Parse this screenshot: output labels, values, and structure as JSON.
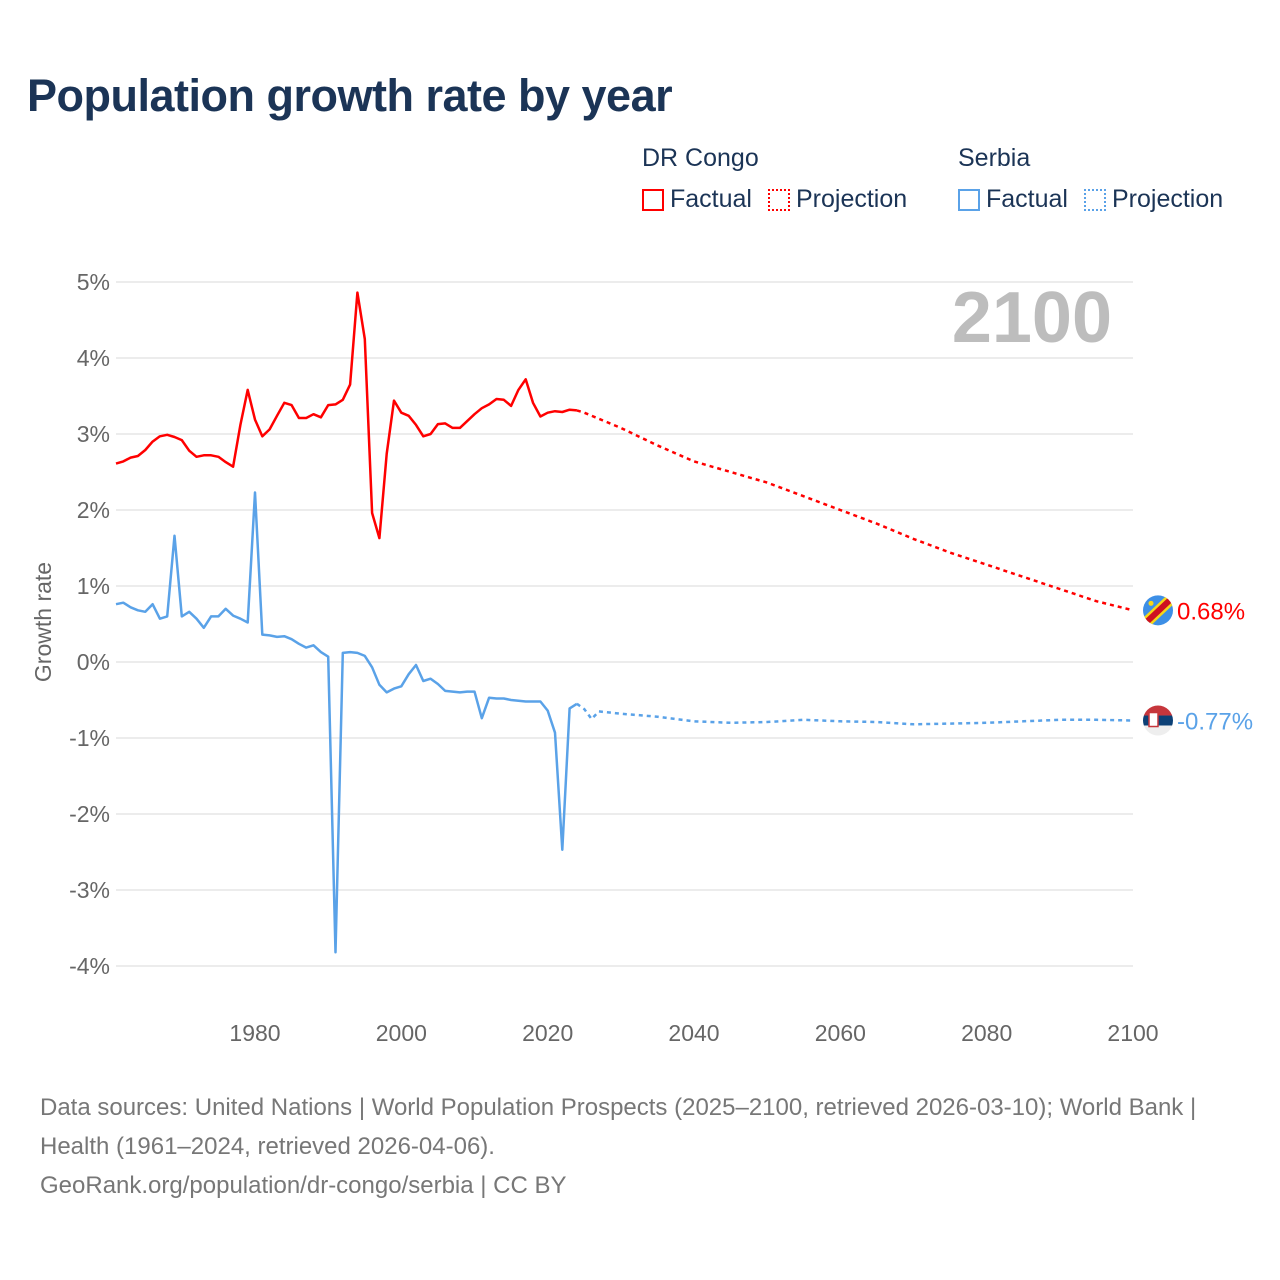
{
  "title": "Population growth rate by year",
  "legend": {
    "groups": [
      {
        "name": "DR Congo",
        "factual": "Factual",
        "projection": "Projection",
        "color": "#ff0000"
      },
      {
        "name": "Serbia",
        "factual": "Factual",
        "projection": "Projection",
        "color": "#5aa2e8"
      }
    ]
  },
  "year_label": "2100",
  "footer": {
    "sources": "Data sources: United Nations | World Population Prospects (2025–2100, retrieved 2026-03-10); World Bank | Health (1961–2024, retrieved 2026-04-06).",
    "credit": "GeoRank.org/population/dr-congo/serbia | CC BY"
  },
  "chart_data": {
    "type": "line",
    "title": "Population growth rate by year",
    "xlabel": "",
    "ylabel": "Growth rate",
    "xlim": [
      1961,
      2100
    ],
    "ylim": [
      -4.3,
      5.2
    ],
    "x_ticks": [
      1980,
      2000,
      2020,
      2040,
      2060,
      2080,
      2100
    ],
    "x_tick_labels": [
      "1980",
      "2000",
      "2020",
      "2040",
      "2060",
      "2080",
      "2100"
    ],
    "y_ticks": [
      5,
      4,
      3,
      2,
      1,
      0,
      -1,
      -2,
      -3,
      -4
    ],
    "y_tick_labels": [
      "5%",
      "4%",
      "3%",
      "2%",
      "1%",
      "0%",
      "-1%",
      "-2%",
      "-3%",
      "-4%"
    ],
    "grid": true,
    "legend_position": "top-right",
    "series": [
      {
        "name": "DR Congo",
        "color": "#ff0000",
        "end_label": "0.68%",
        "factual": {
          "x": [
            1961,
            1962,
            1963,
            1964,
            1965,
            1966,
            1967,
            1968,
            1969,
            1970,
            1971,
            1972,
            1973,
            1974,
            1975,
            1976,
            1977,
            1978,
            1979,
            1980,
            1981,
            1982,
            1983,
            1984,
            1985,
            1986,
            1987,
            1988,
            1989,
            1990,
            1991,
            1992,
            1993,
            1994,
            1995,
            1996,
            1997,
            1998,
            1999,
            2000,
            2001,
            2002,
            2003,
            2004,
            2005,
            2006,
            2007,
            2008,
            2009,
            2010,
            2011,
            2012,
            2013,
            2014,
            2015,
            2016,
            2017,
            2018,
            2019,
            2020,
            2021,
            2022,
            2023,
            2024
          ],
          "y": [
            2.61,
            2.64,
            2.69,
            2.71,
            2.79,
            2.9,
            2.97,
            2.99,
            2.96,
            2.92,
            2.78,
            2.7,
            2.72,
            2.72,
            2.7,
            2.63,
            2.57,
            3.12,
            3.58,
            3.19,
            2.97,
            3.06,
            3.24,
            3.41,
            3.38,
            3.21,
            3.21,
            3.26,
            3.22,
            3.38,
            3.39,
            3.45,
            3.65,
            4.86,
            4.25,
            1.96,
            1.63,
            2.74,
            3.44,
            3.28,
            3.24,
            3.12,
            2.97,
            3.0,
            3.13,
            3.14,
            3.08,
            3.08,
            3.17,
            3.26,
            3.34,
            3.39,
            3.46,
            3.45,
            3.37,
            3.58,
            3.72,
            3.41,
            3.23,
            3.28,
            3.3,
            3.29,
            3.32,
            3.31
          ]
        },
        "projection": {
          "x": [
            2024,
            2025,
            2030,
            2035,
            2040,
            2045,
            2050,
            2055,
            2060,
            2065,
            2070,
            2075,
            2080,
            2085,
            2090,
            2095,
            2100
          ],
          "y": [
            3.31,
            3.28,
            3.08,
            2.85,
            2.64,
            2.5,
            2.36,
            2.18,
            2.0,
            1.82,
            1.62,
            1.44,
            1.28,
            1.12,
            0.96,
            0.8,
            0.68
          ]
        }
      },
      {
        "name": "Serbia",
        "color": "#5aa2e8",
        "end_label": "-0.77%",
        "factual": {
          "x": [
            1961,
            1962,
            1963,
            1964,
            1965,
            1966,
            1967,
            1968,
            1969,
            1970,
            1971,
            1972,
            1973,
            1974,
            1975,
            1976,
            1977,
            1978,
            1979,
            1980,
            1981,
            1982,
            1983,
            1984,
            1985,
            1986,
            1987,
            1988,
            1989,
            1990,
            1991,
            1992,
            1993,
            1994,
            1995,
            1996,
            1997,
            1998,
            1999,
            2000,
            2001,
            2002,
            2003,
            2004,
            2005,
            2006,
            2007,
            2008,
            2009,
            2010,
            2011,
            2012,
            2013,
            2014,
            2015,
            2016,
            2017,
            2018,
            2019,
            2020,
            2021,
            2022,
            2023,
            2024
          ],
          "y": [
            0.76,
            0.78,
            0.72,
            0.68,
            0.66,
            0.76,
            0.57,
            0.6,
            1.66,
            0.6,
            0.66,
            0.57,
            0.45,
            0.6,
            0.6,
            0.7,
            0.61,
            0.57,
            0.52,
            2.23,
            0.36,
            0.35,
            0.33,
            0.34,
            0.3,
            0.24,
            0.19,
            0.22,
            0.13,
            0.07,
            -3.82,
            0.12,
            0.13,
            0.12,
            0.08,
            -0.07,
            -0.3,
            -0.4,
            -0.35,
            -0.32,
            -0.16,
            -0.04,
            -0.25,
            -0.22,
            -0.29,
            -0.38,
            -0.39,
            -0.4,
            -0.39,
            -0.39,
            -0.74,
            -0.47,
            -0.48,
            -0.48,
            -0.5,
            -0.51,
            -0.52,
            -0.52,
            -0.52,
            -0.64,
            -0.93,
            -2.47,
            -0.61,
            -0.55
          ]
        },
        "projection": {
          "x": [
            2024,
            2025,
            2026,
            2027,
            2030,
            2035,
            2040,
            2045,
            2050,
            2055,
            2060,
            2065,
            2070,
            2075,
            2080,
            2085,
            2090,
            2095,
            2100
          ],
          "y": [
            -0.55,
            -0.62,
            -0.75,
            -0.65,
            -0.68,
            -0.72,
            -0.78,
            -0.8,
            -0.79,
            -0.76,
            -0.78,
            -0.79,
            -0.82,
            -0.81,
            -0.8,
            -0.78,
            -0.76,
            -0.76,
            -0.77
          ]
        }
      }
    ]
  }
}
